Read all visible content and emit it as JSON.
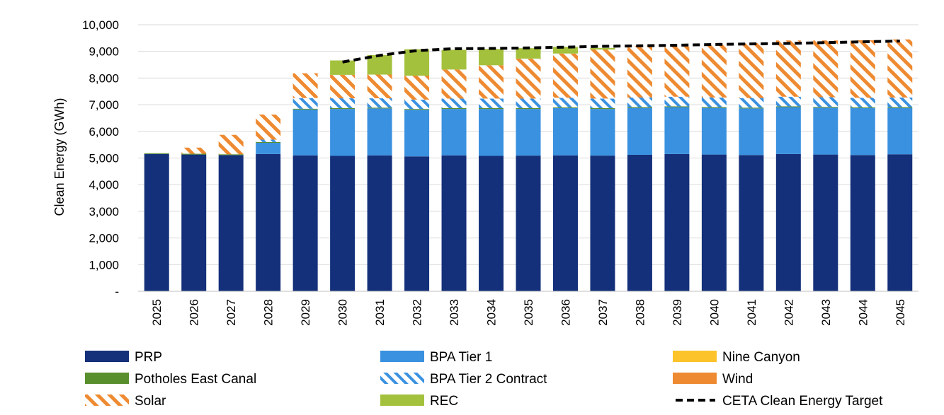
{
  "chart_data": {
    "type": "bar",
    "stacked": true,
    "title": "",
    "xlabel": "",
    "ylabel": "Clean Energy (GWh)",
    "ylim": [
      0,
      10000
    ],
    "yticks": [
      {
        "value": 0,
        "label": "-"
      },
      {
        "value": 1000,
        "label": "1,000"
      },
      {
        "value": 2000,
        "label": "2,000"
      },
      {
        "value": 3000,
        "label": "3,000"
      },
      {
        "value": 4000,
        "label": "4,000"
      },
      {
        "value": 5000,
        "label": "5,000"
      },
      {
        "value": 6000,
        "label": "6,000"
      },
      {
        "value": 7000,
        "label": "7,000"
      },
      {
        "value": 8000,
        "label": "8,000"
      },
      {
        "value": 9000,
        "label": "9,000"
      },
      {
        "value": 10000,
        "label": "10,000"
      }
    ],
    "grid": "horizontal",
    "legend_position": "bottom",
    "categories": [
      "2025",
      "2026",
      "2027",
      "2028",
      "2029",
      "2030",
      "2031",
      "2032",
      "2033",
      "2034",
      "2035",
      "2036",
      "2037",
      "2038",
      "2039",
      "2040",
      "2041",
      "2042",
      "2043",
      "2044",
      "2045"
    ],
    "series": [
      {
        "name": "PRP",
        "color": "#14307a",
        "pattern": "solid",
        "values": [
          5150,
          5130,
          5110,
          5150,
          5100,
          5080,
          5100,
          5060,
          5100,
          5080,
          5090,
          5100,
          5090,
          5120,
          5150,
          5130,
          5110,
          5150,
          5130,
          5110,
          5140
        ]
      },
      {
        "name": "BPA Tier 1",
        "color": "#3a91e0",
        "pattern": "solid",
        "values": [
          0,
          0,
          0,
          420,
          1720,
          1760,
          1760,
          1750,
          1740,
          1760,
          1750,
          1770,
          1750,
          1760,
          1760,
          1750,
          1750,
          1760,
          1760,
          1760,
          1740
        ]
      },
      {
        "name": "Nine Canyon",
        "color": "#fcc32a",
        "pattern": "solid",
        "values": [
          0,
          0,
          0,
          0,
          0,
          0,
          0,
          0,
          0,
          0,
          0,
          0,
          0,
          0,
          0,
          0,
          0,
          0,
          0,
          0,
          0
        ]
      },
      {
        "name": "Potholes East Canal",
        "color": "#5a8f2e",
        "pattern": "solid",
        "values": [
          30,
          30,
          30,
          30,
          30,
          30,
          30,
          30,
          30,
          30,
          30,
          30,
          30,
          30,
          30,
          30,
          30,
          30,
          30,
          30,
          30
        ]
      },
      {
        "name": "BPA Tier 2 Contract",
        "color": "#3a91e0",
        "pattern": "diagonal",
        "values": [
          0,
          0,
          0,
          90,
          400,
          370,
          350,
          350,
          360,
          360,
          360,
          360,
          360,
          360,
          360,
          360,
          360,
          360,
          360,
          360,
          360
        ]
      },
      {
        "name": "Wind",
        "color": "#ee8a31",
        "pattern": "solid",
        "values": [
          0,
          0,
          0,
          0,
          0,
          0,
          0,
          0,
          0,
          0,
          0,
          0,
          0,
          0,
          0,
          0,
          0,
          0,
          0,
          0,
          0
        ]
      },
      {
        "name": "Solar",
        "color": "#ee8a31",
        "pattern": "diagonal",
        "values": [
          0,
          230,
          730,
          940,
          930,
          880,
          890,
          900,
          1090,
          1250,
          1500,
          1660,
          1840,
          1940,
          1960,
          2000,
          2060,
          2110,
          2130,
          2160,
          2180
        ]
      },
      {
        "name": "REC",
        "color": "#a4c13d",
        "pattern": "solid",
        "values": [
          0,
          0,
          0,
          0,
          0,
          540,
          730,
          990,
          740,
          610,
          390,
          250,
          60,
          0,
          0,
          0,
          0,
          0,
          0,
          0,
          0
        ]
      }
    ],
    "target_line": {
      "name": "CETA Clean Energy Target",
      "color": "#000000",
      "style": "dashed",
      "start_index": 5,
      "values": [
        null,
        null,
        null,
        null,
        null,
        8600,
        8850,
        9030,
        9100,
        9110,
        9130,
        9160,
        9190,
        9210,
        9230,
        9260,
        9280,
        9300,
        9330,
        9360,
        9390
      ]
    }
  },
  "legend": [
    {
      "label": "PRP",
      "series": 0
    },
    {
      "label": "BPA Tier 1",
      "series": 1
    },
    {
      "label": "Nine Canyon",
      "series": 2
    },
    {
      "label": "Potholes East Canal",
      "series": 3
    },
    {
      "label": "BPA Tier 2 Contract",
      "series": 4
    },
    {
      "label": "Wind",
      "series": 5
    },
    {
      "label": "Solar",
      "series": 6
    },
    {
      "label": "REC",
      "series": 7
    },
    {
      "label": "CETA Clean Energy Target",
      "series": "target"
    }
  ]
}
